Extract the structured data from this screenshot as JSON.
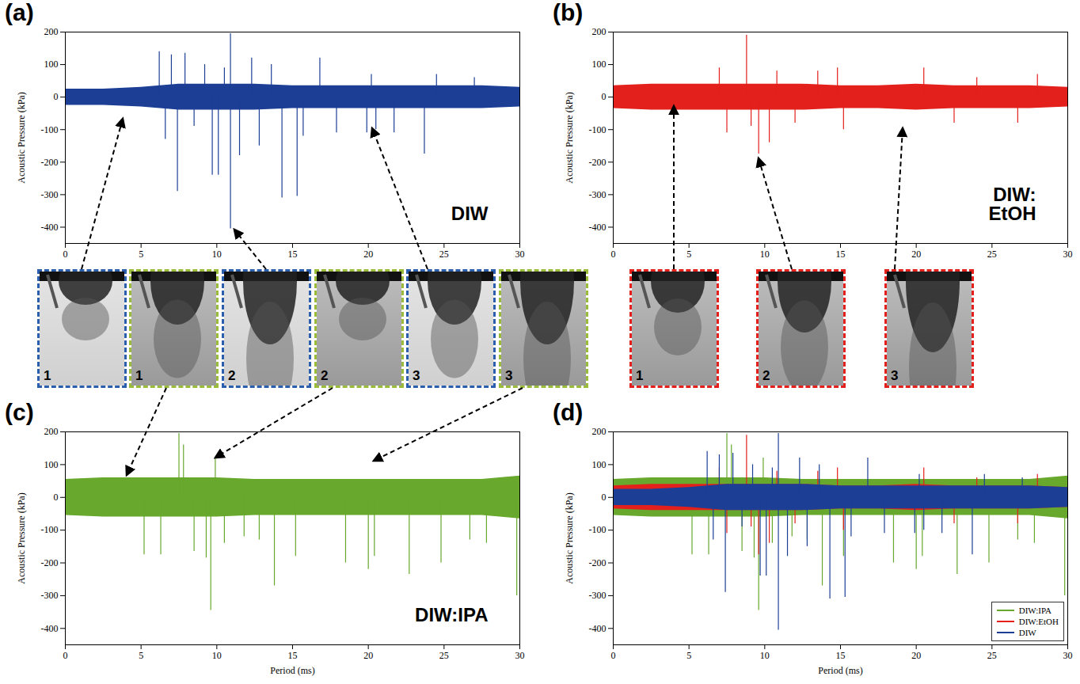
{
  "chart_data": [
    {
      "type": "line",
      "panel": "(a)",
      "title": "DIW",
      "y_label": "Acoustic Pressure (kPa)",
      "xlim": [
        0,
        30
      ],
      "xticks": [
        0,
        5,
        10,
        15,
        20,
        25,
        30
      ],
      "ylim": [
        -450,
        200
      ],
      "yticks": [
        -400,
        -300,
        -200,
        -100,
        0,
        100,
        200
      ],
      "series": [
        {
          "name": "DIW",
          "color": "#1c3f95",
          "band_x": [
            0,
            2.5,
            5,
            7.5,
            10,
            12.5,
            15,
            17.5,
            20,
            22.5,
            25,
            27.5,
            30
          ],
          "band_upper": [
            25,
            25,
            30,
            40,
            40,
            40,
            35,
            35,
            35,
            35,
            35,
            35,
            30
          ],
          "band_lower": [
            -25,
            -25,
            -30,
            -40,
            -40,
            -40,
            -35,
            -35,
            -35,
            -35,
            -35,
            -35,
            -30
          ],
          "spike_x": [
            6.2,
            6.6,
            7,
            7.4,
            7.9,
            8.5,
            9.2,
            9.7,
            10.1,
            10.5,
            10.9,
            10.9,
            11.5,
            12.3,
            12.8,
            13.6,
            14.3,
            15.3,
            15.7,
            16.8,
            17.9,
            19.9,
            20.2,
            20.5,
            21.7,
            23.7,
            24.5,
            27
          ],
          "spike_values": [
            140,
            -130,
            130,
            -290,
            135,
            -90,
            100,
            -240,
            -240,
            90,
            195,
            -405,
            -180,
            120,
            -150,
            100,
            -310,
            -305,
            -120,
            120,
            -110,
            -110,
            70,
            -100,
            -110,
            -175,
            70,
            60
          ]
        }
      ]
    },
    {
      "type": "line",
      "panel": "(b)",
      "title": "DIW: EtOH",
      "y_label": "Acoustic Pressure (kPa)",
      "xlim": [
        0,
        30
      ],
      "xticks": [
        0,
        5,
        10,
        15,
        20,
        25,
        30
      ],
      "ylim": [
        -450,
        200
      ],
      "yticks": [
        -400,
        -300,
        -200,
        -100,
        0,
        100,
        200
      ],
      "series": [
        {
          "name": "DIW:EtOH",
          "color": "#e3201b",
          "band_x": [
            0,
            2.5,
            5,
            7.5,
            10,
            12.5,
            15,
            17.5,
            20,
            22.5,
            25,
            27.5,
            30
          ],
          "band_upper": [
            35,
            40,
            40,
            40,
            40,
            40,
            35,
            35,
            40,
            35,
            35,
            35,
            30
          ],
          "band_lower": [
            -35,
            -40,
            -40,
            -40,
            -40,
            -40,
            -35,
            -35,
            -40,
            -35,
            -35,
            -35,
            -30
          ],
          "spike_x": [
            7,
            7.5,
            8.8,
            9.1,
            9.6,
            10.3,
            10.8,
            12,
            13.5,
            14.8,
            15.2,
            20.5,
            22.5,
            24,
            26.7,
            28
          ],
          "spike_values": [
            90,
            -110,
            190,
            -90,
            -175,
            -140,
            80,
            -80,
            80,
            90,
            -100,
            90,
            -80,
            60,
            -80,
            70
          ]
        }
      ]
    },
    {
      "type": "line",
      "panel": "(c)",
      "title": "DIW:IPA",
      "x_label": "Period (ms)",
      "y_label": "Acoustic Pressure (kPa)",
      "xlim": [
        0,
        30
      ],
      "xticks": [
        0,
        5,
        10,
        15,
        20,
        25,
        30
      ],
      "ylim": [
        -450,
        200
      ],
      "yticks": [
        -400,
        -300,
        -200,
        -100,
        0,
        100,
        200
      ],
      "series": [
        {
          "name": "DIW:IPA",
          "color": "#67a82d",
          "band_x": [
            0,
            2.5,
            5,
            7.5,
            10,
            12.5,
            15,
            17.5,
            20,
            22.5,
            25,
            27.5,
            30
          ],
          "band_upper": [
            55,
            60,
            60,
            60,
            60,
            55,
            55,
            55,
            55,
            55,
            55,
            55,
            65
          ],
          "band_lower": [
            -55,
            -60,
            -60,
            -60,
            -60,
            -55,
            -55,
            -55,
            -55,
            -55,
            -55,
            -55,
            -65
          ],
          "spike_x": [
            5.2,
            6.3,
            7.5,
            7.8,
            8.5,
            9.3,
            9.6,
            9.9,
            10.5,
            11.8,
            12.8,
            13.8,
            15.2,
            18.5,
            20,
            20.4,
            22.7,
            24.8,
            26.7,
            27.8,
            29.8
          ],
          "spike_values": [
            -175,
            -175,
            195,
            160,
            -165,
            -185,
            -345,
            120,
            -140,
            -120,
            -130,
            -270,
            -180,
            -200,
            -220,
            -180,
            -235,
            -200,
            -130,
            -140,
            -300
          ]
        }
      ]
    },
    {
      "type": "line",
      "panel": "(d)",
      "x_label": "Period (ms)",
      "y_label": "Acoustic Pressure (kPa)",
      "xlim": [
        0,
        30
      ],
      "xticks": [
        0,
        5,
        10,
        15,
        20,
        25,
        30
      ],
      "ylim": [
        -450,
        200
      ],
      "yticks": [
        -400,
        -300,
        -200,
        -100,
        0,
        100,
        200
      ],
      "legend": "bottom-right",
      "series": [
        {
          "name": "DIW:IPA",
          "color": "#67a82d",
          "band_x": [
            0,
            2.5,
            5,
            7.5,
            10,
            12.5,
            15,
            17.5,
            20,
            22.5,
            25,
            27.5,
            30
          ],
          "band_upper": [
            55,
            60,
            60,
            60,
            60,
            55,
            55,
            55,
            55,
            55,
            55,
            55,
            65
          ],
          "band_lower": [
            -55,
            -60,
            -60,
            -60,
            -60,
            -55,
            -55,
            -55,
            -55,
            -55,
            -55,
            -55,
            -65
          ],
          "spike_x": [
            5.2,
            6.3,
            7.5,
            7.8,
            8.5,
            9.3,
            9.6,
            9.9,
            10.5,
            11.8,
            12.8,
            13.8,
            15.2,
            18.5,
            20,
            20.4,
            22.7,
            24.8,
            26.7,
            27.8,
            29.8
          ],
          "spike_values": [
            -175,
            -175,
            195,
            160,
            -165,
            -185,
            -345,
            120,
            -140,
            -120,
            -130,
            -270,
            -180,
            -200,
            -220,
            -180,
            -235,
            -200,
            -130,
            -140,
            -300
          ]
        },
        {
          "name": "DIW:EtOH",
          "color": "#e3201b",
          "band_x": [
            0,
            2.5,
            5,
            7.5,
            10,
            12.5,
            15,
            17.5,
            20,
            22.5,
            25,
            27.5,
            30
          ],
          "band_upper": [
            35,
            40,
            40,
            40,
            40,
            40,
            35,
            35,
            40,
            35,
            35,
            35,
            30
          ],
          "band_lower": [
            -35,
            -40,
            -40,
            -40,
            -40,
            -40,
            -35,
            -35,
            -40,
            -35,
            -35,
            -35,
            -30
          ],
          "spike_x": [
            7,
            7.5,
            8.8,
            9.1,
            9.6,
            10.3,
            10.8,
            12,
            13.5,
            14.8,
            15.2,
            20.5,
            22.5,
            24,
            26.7,
            28
          ],
          "spike_values": [
            90,
            -110,
            190,
            -90,
            -175,
            -140,
            80,
            -80,
            80,
            90,
            -100,
            90,
            -80,
            60,
            -80,
            70
          ]
        },
        {
          "name": "DIW",
          "color": "#1c3f95",
          "band_x": [
            0,
            2.5,
            5,
            7.5,
            10,
            12.5,
            15,
            17.5,
            20,
            22.5,
            25,
            27.5,
            30
          ],
          "band_upper": [
            25,
            25,
            30,
            40,
            40,
            40,
            35,
            35,
            35,
            35,
            35,
            35,
            30
          ],
          "band_lower": [
            -25,
            -25,
            -30,
            -40,
            -40,
            -40,
            -35,
            -35,
            -35,
            -35,
            -35,
            -35,
            -30
          ],
          "spike_x": [
            6.2,
            6.6,
            7,
            7.4,
            7.9,
            8.5,
            9.2,
            9.7,
            10.1,
            10.5,
            10.9,
            10.9,
            11.5,
            12.3,
            12.8,
            13.6,
            14.3,
            15.3,
            15.7,
            16.8,
            17.9,
            19.9,
            20.2,
            20.5,
            21.7,
            23.7,
            24.5,
            27
          ],
          "spike_values": [
            140,
            -130,
            130,
            -290,
            135,
            -90,
            100,
            -240,
            -240,
            90,
            195,
            -405,
            -180,
            120,
            -150,
            100,
            -310,
            -305,
            -120,
            120,
            -110,
            -110,
            70,
            -100,
            -110,
            -175,
            70,
            60
          ]
        }
      ]
    }
  ],
  "photos": [
    {
      "label": "1",
      "color": "#2b5fad"
    },
    {
      "label": "1",
      "color": "#9bbb3b"
    },
    {
      "label": "2",
      "color": "#2b5fad"
    },
    {
      "label": "2",
      "color": "#9bbb3b"
    },
    {
      "label": "3",
      "color": "#2b5fad"
    },
    {
      "label": "3",
      "color": "#9bbb3b"
    },
    {
      "label": "1",
      "color": "#e3201b"
    },
    {
      "label": "2",
      "color": "#e3201b"
    },
    {
      "label": "3",
      "color": "#e3201b"
    }
  ]
}
